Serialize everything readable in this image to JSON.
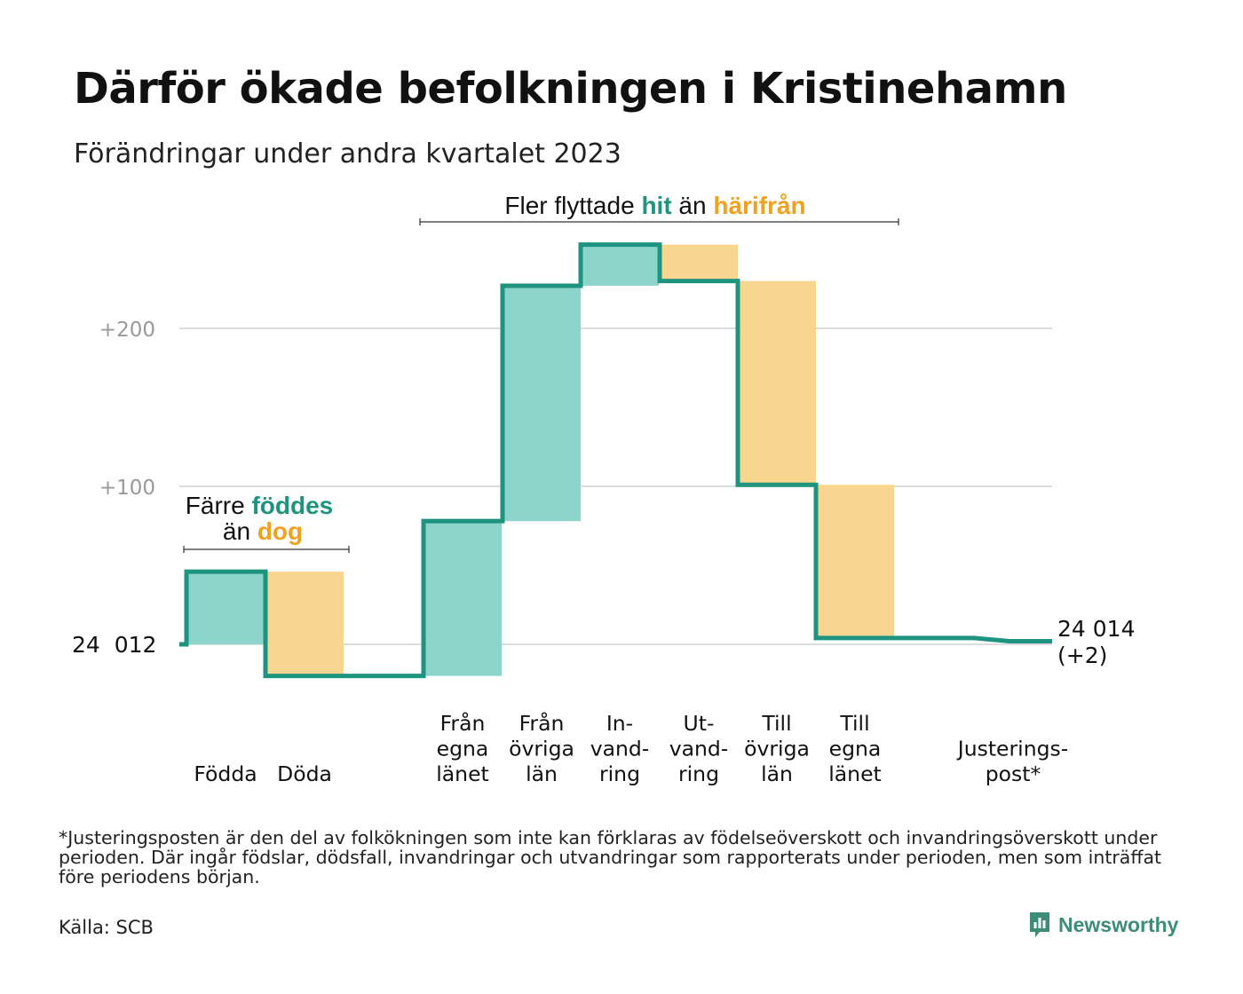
{
  "header": {
    "title": "Därför ökade befolkningen i Kristinehamn",
    "subtitle": "Förändringar under andra kvartalet 2023"
  },
  "chart_data": {
    "type": "waterfall",
    "base_label": "24  012",
    "end_label": [
      "24 014",
      "(+2)"
    ],
    "y_ticks": [
      {
        "value": 100,
        "label": "+100"
      },
      {
        "value": 200,
        "label": "+200"
      }
    ],
    "start": 24012,
    "steps": [
      {
        "key": "fodda",
        "label_lines": [
          "Födda"
        ],
        "from": 0,
        "to": 46,
        "kind": "gain"
      },
      {
        "key": "doda",
        "label_lines": [
          "Döda"
        ],
        "from": 46,
        "to": -20,
        "kind": "loss"
      },
      {
        "key": "fran-egna-lanet",
        "label_lines": [
          "Från",
          "egna",
          "länet"
        ],
        "from": -20,
        "to": 78,
        "kind": "gain"
      },
      {
        "key": "fran-ovriga-lan",
        "label_lines": [
          "Från",
          "övriga",
          "län"
        ],
        "from": 78,
        "to": 227,
        "kind": "gain"
      },
      {
        "key": "invandring",
        "label_lines": [
          "In-",
          "vand-",
          "ring"
        ],
        "from": 227,
        "to": 253,
        "kind": "gain"
      },
      {
        "key": "utvandring",
        "label_lines": [
          "Ut-",
          "vand-",
          "ring"
        ],
        "from": 253,
        "to": 230,
        "kind": "loss"
      },
      {
        "key": "till-ovriga-lan",
        "label_lines": [
          "Till",
          "övriga",
          "län"
        ],
        "from": 230,
        "to": 101,
        "kind": "loss"
      },
      {
        "key": "till-egna-lanet",
        "label_lines": [
          "Till",
          "egna",
          "länet"
        ],
        "from": 101,
        "to": 4,
        "kind": "loss"
      },
      {
        "key": "justeringspost",
        "label_lines": [
          "Justerings-",
          "post*"
        ],
        "from": 4,
        "to": 2,
        "kind": "adjustment"
      }
    ],
    "annotations": [
      {
        "key": "birth",
        "parts": [
          {
            "text": "Färre ",
            "tone": "neutral"
          },
          {
            "text": "föddes",
            "tone": "gain"
          },
          {
            "text": "än ",
            "tone": "neutral"
          },
          {
            "text": "dog",
            "tone": "loss"
          }
        ]
      },
      {
        "key": "migration",
        "parts": [
          {
            "text": "Fler flyttade ",
            "tone": "neutral"
          },
          {
            "text": "hit",
            "tone": "gain"
          },
          {
            "text": " än ",
            "tone": "neutral"
          },
          {
            "text": "härifrån",
            "tone": "loss"
          }
        ]
      }
    ],
    "colors": {
      "gain_fill": "#8dd4cb",
      "loss_fill": "#f9d68f",
      "line": "#1e9480",
      "gain_text": "#1e9480",
      "loss_text": "#f0a11e",
      "grid": "#dddddd",
      "tick_text": "#9a9a9a"
    },
    "grid": true
  },
  "footer": {
    "footnote": "*Justeringsposten är den del av folkökningen som inte kan förklaras av födelseöverskott och invandringsöverskott under perioden. Där ingår födslar, dödsfall, invandringar och utvandringar som rapporterats under perioden, men som inträffat före periodens början.",
    "source": "Källa: SCB",
    "brand": "Newsworthy",
    "brand_icon": "newsworthy-logo-icon"
  }
}
